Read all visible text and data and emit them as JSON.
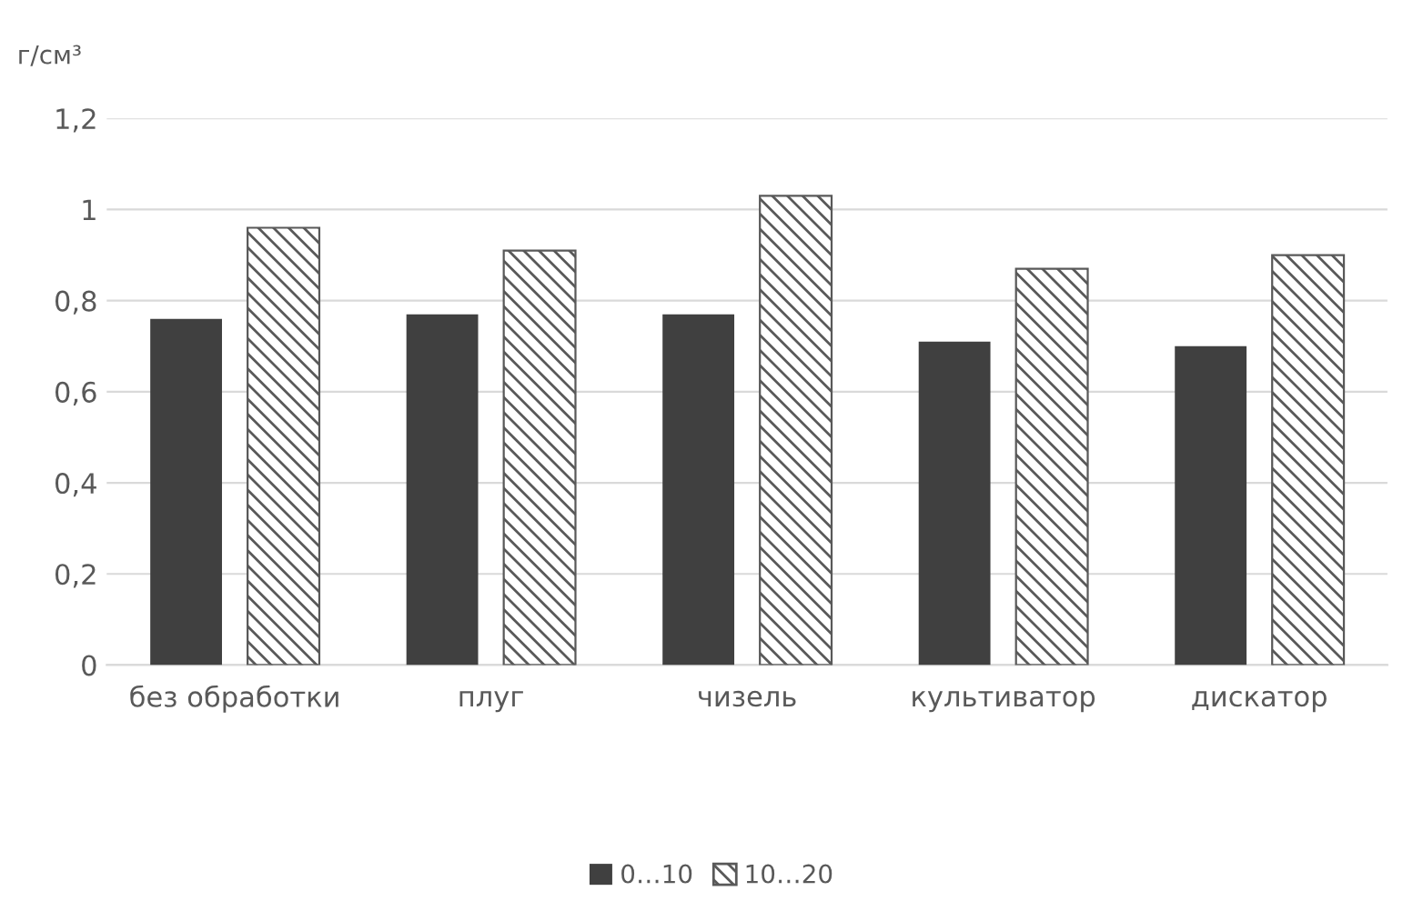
{
  "chart_data": {
    "type": "bar",
    "ylabel": "г/см³",
    "categories": [
      "без обработки",
      "плуг",
      "чизель",
      "культиватор",
      "дискатор"
    ],
    "series": [
      {
        "name": "0…10",
        "color": "#404040",
        "values": [
          0.76,
          0.77,
          0.77,
          0.71,
          0.7
        ]
      },
      {
        "name": "10…20",
        "color": "#595959",
        "values": [
          0.96,
          0.91,
          1.03,
          0.87,
          0.9
        ]
      }
    ],
    "ylim": [
      0,
      1.2
    ],
    "yticks": [
      {
        "value": 0,
        "label": "0"
      },
      {
        "value": 0.2,
        "label": "0,2"
      },
      {
        "value": 0.4,
        "label": "0,4"
      },
      {
        "value": 0.6,
        "label": "0,6"
      },
      {
        "value": 0.8,
        "label": "0,8"
      },
      {
        "value": 1,
        "label": "1"
      },
      {
        "value": 1.2,
        "label": "1,2"
      }
    ],
    "grid": "y",
    "legend": "bottom"
  }
}
